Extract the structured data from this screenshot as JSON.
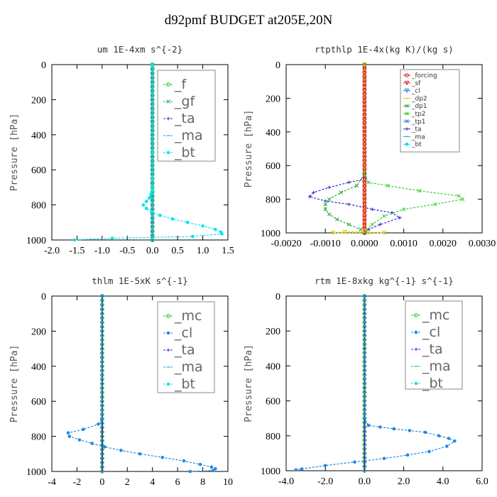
{
  "figure_title": "d92pmf  BUDGET at205E,20N",
  "colors": {
    "f": "#22cc22",
    "gf": "#2aa388",
    "ta": "#2b2bcc",
    "ma": "#22aadd",
    "bt": "#00e5ee",
    "mc": "#22cc22",
    "cl": "#1f88e5",
    "forcing": "#dd2222",
    "sf": "#dd2222",
    "dp2": "#ddcc00",
    "dp1": "#22aa33",
    "tp2": "#33cc33",
    "tp1": "#3377dd"
  },
  "chart_data": [
    {
      "type": "line",
      "title": "um   1E-4xm s^{-2}",
      "ylabel": "Pressure [hPa]",
      "xlim": [
        -2.0,
        1.5
      ],
      "ylim": [
        1000,
        0
      ],
      "xticks": [
        -2.0,
        -1.5,
        -1.0,
        -0.5,
        0.0,
        0.5,
        1.0,
        1.5
      ],
      "xtick_labels": [
        "-2.0",
        "-1.5",
        "-1.0",
        "-0.5",
        "0.0",
        "0.5",
        "1.0",
        "1.5"
      ],
      "yticks": [
        0,
        200,
        400,
        600,
        800,
        1000
      ],
      "ytick_labels": [
        "0",
        "200",
        "400",
        "600",
        "800",
        "1000"
      ],
      "legend_style": "big",
      "legend": [
        "_f",
        "_gf",
        "_ta",
        "_ma",
        "_bt"
      ],
      "series": [
        {
          "name": "_f",
          "color_key": "f",
          "marker": "circle",
          "vertical": true
        },
        {
          "name": "_gf",
          "color_key": "gf",
          "marker": "x",
          "vertical": true
        },
        {
          "name": "_ta",
          "color_key": "ta",
          "marker": "plus",
          "vertical": true
        },
        {
          "name": "_ma",
          "color_key": "ma",
          "marker": "dash",
          "vertical": true
        },
        {
          "name": "_bt",
          "color_key": "bt",
          "marker": "dot",
          "x": [
            0,
            0,
            0,
            0,
            0,
            -0.03,
            -0.06,
            -0.12,
            -0.18,
            -0.12,
            -0.02,
            0.15,
            0.4,
            0.7,
            1.0,
            1.25,
            1.36,
            1.38,
            0.8,
            -0.8,
            -1.55
          ],
          "y": [
            0,
            500,
            650,
            700,
            720,
            740,
            760,
            780,
            800,
            820,
            840,
            860,
            880,
            900,
            920,
            940,
            955,
            965,
            980,
            990,
            1000
          ]
        }
      ]
    },
    {
      "type": "line",
      "title": "rtpthlp   1E-4x(kg K)/(kg s)",
      "ylabel": "Pressure [hPa]",
      "xlim": [
        -0.002,
        0.003
      ],
      "ylim": [
        1000,
        0
      ],
      "xticks": [
        -0.002,
        -0.001,
        0.0,
        0.001,
        0.002,
        0.003
      ],
      "xtick_labels": [
        "-0.0020",
        "-0.0010",
        "0.0000",
        "0.0010",
        "0.0020",
        "0.0030"
      ],
      "yticks": [
        0,
        200,
        400,
        600,
        800,
        1000
      ],
      "ytick_labels": [
        "0",
        "200",
        "400",
        "600",
        "800",
        "1000"
      ],
      "legend_style": "small",
      "legend": [
        "_forcing",
        "_sf",
        "_cl",
        "_dp2",
        "_dp1",
        "_tp2",
        "_tp1",
        "_ta",
        "_ma",
        "_bt"
      ],
      "series": [
        {
          "name": "_forcing",
          "color_key": "forcing",
          "marker": "circle",
          "vertical": true
        },
        {
          "name": "_sf",
          "color_key": "sf",
          "marker": "tri",
          "vertical": true
        },
        {
          "name": "_tp2",
          "color_key": "tp2",
          "marker": "x",
          "x": [
            0,
            0,
            0.0001,
            0.0006,
            0.0014,
            0.0024,
            0.0025,
            0.0018,
            0.001,
            0.0005,
            0.0002,
            0
          ],
          "y": [
            0,
            650,
            700,
            720,
            750,
            780,
            800,
            830,
            860,
            900,
            950,
            1000
          ]
        },
        {
          "name": "_dp1",
          "color_key": "dp1",
          "marker": "x",
          "x": [
            0,
            0,
            -0.0002,
            -0.0006,
            -0.0009,
            -0.001,
            -0.001,
            -0.0009,
            -0.0007,
            -0.0004,
            -0.0001,
            0
          ],
          "y": [
            0,
            650,
            720,
            760,
            800,
            830,
            860,
            890,
            920,
            950,
            980,
            1000
          ]
        },
        {
          "name": "_ta",
          "color_key": "ta",
          "marker": "plus",
          "x": [
            0,
            0,
            -0.0004,
            -0.0009,
            -0.0013,
            -0.0014,
            -0.001,
            -0.0004,
            0.0002,
            0.0007,
            0.0009,
            0.0004,
            0.0001,
            0
          ],
          "y": [
            0,
            680,
            700,
            730,
            760,
            785,
            810,
            830,
            860,
            880,
            910,
            950,
            980,
            1000
          ]
        },
        {
          "name": "_cl",
          "color_key": "dp2",
          "marker": "tri",
          "x": [
            0,
            0,
            -0.0005,
            -0.0008,
            0.0001,
            0.0005
          ],
          "y": [
            0,
            990,
            995,
            1000,
            998,
            1000
          ]
        }
      ]
    },
    {
      "type": "line",
      "title": "thlm   1E-5xK s^{-1}",
      "ylabel": "Pressure [hPa]",
      "xlim": [
        -4,
        10
      ],
      "ylim": [
        1000,
        0
      ],
      "xticks": [
        -4,
        -2,
        0,
        2,
        4,
        6,
        8,
        10
      ],
      "xtick_labels": [
        "-4",
        "-2",
        "0",
        "2",
        "4",
        "6",
        "8",
        "10"
      ],
      "yticks": [
        0,
        200,
        400,
        600,
        800,
        1000
      ],
      "ytick_labels": [
        "0",
        "200",
        "400",
        "600",
        "800",
        "1000"
      ],
      "legend_style": "big",
      "legend": [
        "_mc",
        "_cl",
        "_ta",
        "_ma",
        "_bt"
      ],
      "series": [
        {
          "name": "_mc",
          "color_key": "mc",
          "marker": "circle",
          "vertical": true
        },
        {
          "name": "_ta",
          "color_key": "ta",
          "marker": "plus",
          "vertical": true
        },
        {
          "name": "_cl",
          "color_key": "cl",
          "marker": "dot",
          "x": [
            0,
            0,
            -0.3,
            -1.5,
            -2.7,
            -2.6,
            -1.8,
            -0.8,
            0.2,
            1.5,
            3.0,
            4.8,
            6.5,
            7.8,
            8.7,
            9.0,
            8.8,
            7.0
          ],
          "y": [
            0,
            700,
            730,
            760,
            780,
            800,
            820,
            840,
            860,
            880,
            900,
            920,
            940,
            960,
            975,
            985,
            995,
            1000
          ]
        }
      ]
    },
    {
      "type": "line",
      "title": "rtm   1E-8xkg kg^{-1} s^{-1}",
      "ylabel": "Pressure [hPa]",
      "xlim": [
        -4.0,
        6.0
      ],
      "ylim": [
        1000,
        0
      ],
      "xticks": [
        -4.0,
        -2.0,
        0.0,
        2.0,
        4.0,
        6.0
      ],
      "xtick_labels": [
        "-4.0",
        "-2.0",
        "0.0",
        "2.0",
        "4.0",
        "6.0"
      ],
      "yticks": [
        0,
        200,
        400,
        600,
        800,
        1000
      ],
      "ytick_labels": [
        "0",
        "200",
        "400",
        "600",
        "800",
        "1000"
      ],
      "legend_style": "big",
      "legend": [
        "_mc",
        "_cl",
        "_ta",
        "_ma",
        "_bt"
      ],
      "series": [
        {
          "name": "_mc",
          "color_key": "mc",
          "marker": "circle",
          "vertical": true
        },
        {
          "name": "_ta",
          "color_key": "ta",
          "marker": "plus",
          "vertical": true
        },
        {
          "name": "_cl",
          "color_key": "cl",
          "marker": "dot",
          "x": [
            0,
            0,
            0.2,
            0.8,
            1.5,
            2.3,
            3.1,
            3.8,
            4.3,
            4.6,
            4.2,
            3.3,
            2.2,
            1.0,
            -0.5,
            -2.0,
            -3.2,
            -3.5
          ],
          "y": [
            0,
            700,
            740,
            750,
            760,
            770,
            780,
            800,
            815,
            830,
            860,
            890,
            910,
            930,
            950,
            970,
            990,
            995
          ]
        }
      ]
    }
  ]
}
